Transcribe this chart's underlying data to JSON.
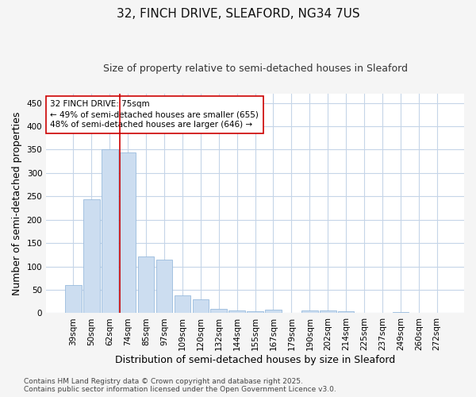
{
  "title": "32, FINCH DRIVE, SLEAFORD, NG34 7US",
  "subtitle": "Size of property relative to semi-detached houses in Sleaford",
  "xlabel": "Distribution of semi-detached houses by size in Sleaford",
  "ylabel": "Number of semi-detached properties",
  "categories": [
    "39sqm",
    "50sqm",
    "62sqm",
    "74sqm",
    "85sqm",
    "97sqm",
    "109sqm",
    "120sqm",
    "132sqm",
    "144sqm",
    "155sqm",
    "167sqm",
    "179sqm",
    "190sqm",
    "202sqm",
    "214sqm",
    "225sqm",
    "237sqm",
    "249sqm",
    "260sqm",
    "272sqm"
  ],
  "values": [
    60,
    244,
    350,
    344,
    122,
    114,
    38,
    30,
    9,
    6,
    5,
    7,
    1,
    6,
    6,
    5,
    1,
    0,
    2,
    1,
    1
  ],
  "bar_color": "#ccddf0",
  "bar_edge_color": "#99bbdd",
  "highlight_line_index": 3,
  "highlight_color": "#cc0000",
  "annotation_line1": "32 FINCH DRIVE: 75sqm",
  "annotation_line2": "← 49% of semi-detached houses are smaller (655)",
  "annotation_line3": "48% of semi-detached houses are larger (646) →",
  "annotation_box_color": "#ffffff",
  "annotation_box_edge": "#cc0000",
  "ylim": [
    0,
    470
  ],
  "yticks": [
    0,
    50,
    100,
    150,
    200,
    250,
    300,
    350,
    400,
    450
  ],
  "fig_bg_color": "#f5f5f5",
  "plot_bg_color": "#ffffff",
  "grid_color": "#c5d5e8",
  "title_fontsize": 11,
  "subtitle_fontsize": 9,
  "axis_label_fontsize": 9,
  "tick_fontsize": 7.5,
  "annotation_fontsize": 7.5,
  "footer_fontsize": 6.5,
  "footer": "Contains HM Land Registry data © Crown copyright and database right 2025.\nContains public sector information licensed under the Open Government Licence v3.0."
}
